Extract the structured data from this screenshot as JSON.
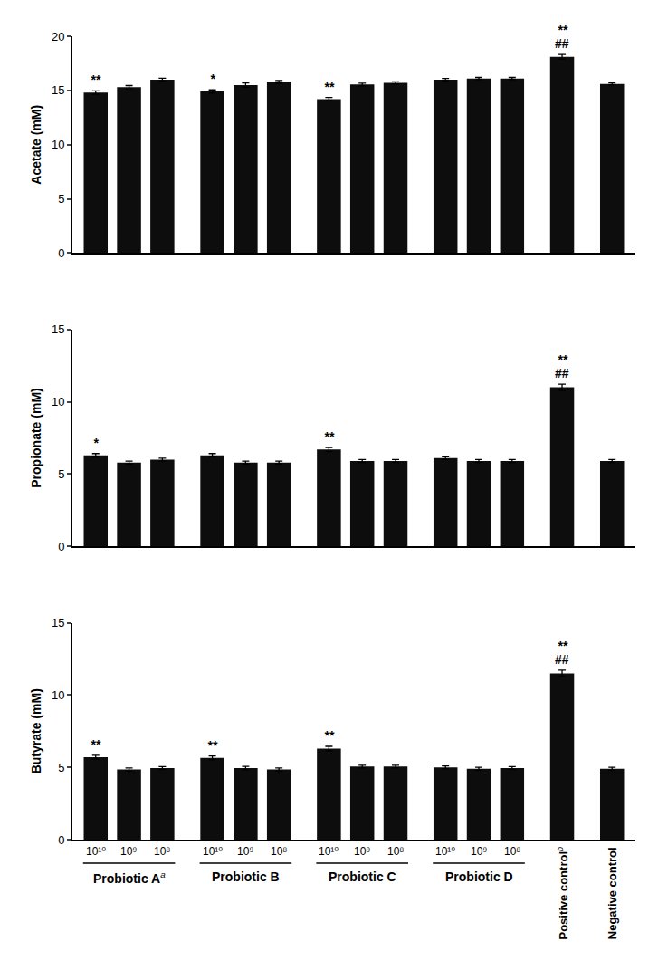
{
  "chart_data": [
    {
      "type": "bar",
      "ylabel": "Acetate (mM)",
      "categories": [
        "10¹⁰",
        "10⁹",
        "10⁸",
        "10¹⁰",
        "10⁹",
        "10⁸",
        "10¹⁰",
        "10⁹",
        "10⁸",
        "10¹⁰",
        "10⁹",
        "10⁸",
        "Positive control",
        "Negative control"
      ],
      "values": [
        14.8,
        15.3,
        16.0,
        14.9,
        15.5,
        15.8,
        14.2,
        15.55,
        15.7,
        16.0,
        16.1,
        16.1,
        18.1,
        15.6
      ],
      "errors": [
        0.15,
        0.15,
        0.12,
        0.15,
        0.2,
        0.12,
        0.15,
        0.12,
        0.1,
        0.1,
        0.1,
        0.1,
        0.22,
        0.1
      ],
      "color": "#0d0d0d",
      "ylim": [
        0,
        20
      ],
      "yticks": [
        0,
        5,
        10,
        15,
        20
      ],
      "grid": false,
      "tick_labels": "y",
      "annotations": [
        {
          "index": 0,
          "texts": [
            "**"
          ]
        },
        {
          "index": 3,
          "texts": [
            "*"
          ]
        },
        {
          "index": 6,
          "texts": [
            "**"
          ]
        },
        {
          "index": 12,
          "texts": [
            "##",
            "**"
          ]
        }
      ]
    },
    {
      "type": "bar",
      "ylabel": "Propionate (mM)",
      "categories": [
        "10¹⁰",
        "10⁹",
        "10⁸",
        "10¹⁰",
        "10⁹",
        "10⁸",
        "10¹⁰",
        "10⁹",
        "10⁸",
        "10¹⁰",
        "10⁹",
        "10⁸",
        "Positive control",
        "Negative control"
      ],
      "values": [
        6.3,
        5.8,
        6.0,
        6.3,
        5.8,
        5.8,
        6.7,
        5.9,
        5.9,
        6.1,
        5.9,
        5.9,
        11.0,
        5.9
      ],
      "errors": [
        0.12,
        0.1,
        0.1,
        0.12,
        0.1,
        0.1,
        0.13,
        0.1,
        0.1,
        0.1,
        0.1,
        0.1,
        0.22,
        0.1
      ],
      "color": "#0d0d0d",
      "ylim": [
        0,
        15
      ],
      "yticks": [
        0,
        5,
        10,
        15
      ],
      "grid": false,
      "tick_labels": "y",
      "annotations": [
        {
          "index": 0,
          "texts": [
            "*"
          ]
        },
        {
          "index": 6,
          "texts": [
            "**"
          ]
        },
        {
          "index": 12,
          "texts": [
            "##",
            "**"
          ]
        }
      ]
    },
    {
      "type": "bar",
      "ylabel": "Butyrate (mM)",
      "categories": [
        "10¹⁰",
        "10⁹",
        "10⁸",
        "10¹⁰",
        "10⁹",
        "10⁸",
        "10¹⁰",
        "10⁹",
        "10⁸",
        "10¹⁰",
        "10⁹",
        "10⁸",
        "Positive control",
        "Negative control"
      ],
      "groups": [
        "Probiotic A",
        "Probiotic A",
        "Probiotic A",
        "Probiotic B",
        "Probiotic B",
        "Probiotic B",
        "Probiotic C",
        "Probiotic C",
        "Probiotic C",
        "Probiotic D",
        "Probiotic D",
        "Probiotic D",
        null,
        null
      ],
      "notes": [
        {
          "text": "a",
          "after": "Probiotic A"
        },
        {
          "text": "b",
          "after": "Positive control"
        }
      ],
      "values": [
        5.7,
        4.85,
        4.95,
        5.65,
        4.95,
        4.85,
        6.3,
        5.05,
        5.05,
        5.0,
        4.9,
        4.95,
        11.5,
        4.9
      ],
      "errors": [
        0.13,
        0.1,
        0.1,
        0.13,
        0.12,
        0.1,
        0.15,
        0.1,
        0.1,
        0.1,
        0.1,
        0.1,
        0.22,
        0.1
      ],
      "color": "#0d0d0d",
      "ylim": [
        0,
        15
      ],
      "yticks": [
        0,
        5,
        10,
        15
      ],
      "grid": false,
      "annotations": [
        {
          "index": 0,
          "texts": [
            "**"
          ]
        },
        {
          "index": 3,
          "texts": [
            "**"
          ]
        },
        {
          "index": 6,
          "texts": [
            "**"
          ]
        },
        {
          "index": 12,
          "texts": [
            "##",
            "**"
          ]
        }
      ]
    }
  ]
}
